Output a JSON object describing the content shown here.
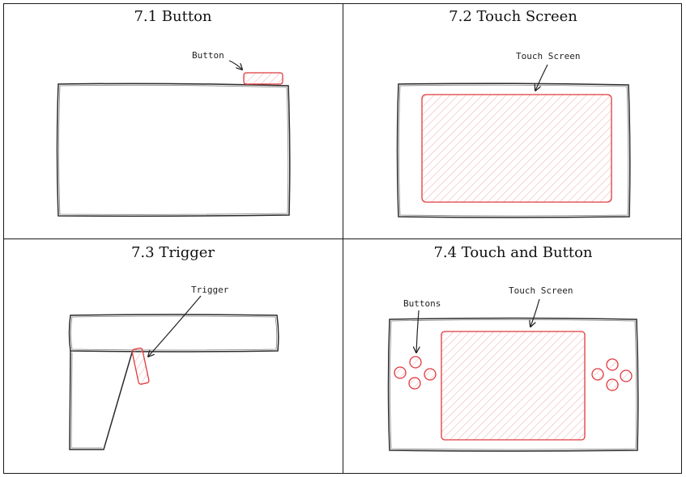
{
  "panels": [
    {
      "title": "7.1 Button",
      "labels": {
        "button": "Button"
      }
    },
    {
      "title": "7.2 Touch Screen",
      "labels": {
        "screen": "Touch Screen"
      }
    },
    {
      "title": "7.3 Trigger",
      "labels": {
        "trigger": "Trigger"
      }
    },
    {
      "title": "7.4 Touch and Button",
      "labels": {
        "buttons": "Buttons",
        "screen": "Touch Screen"
      }
    }
  ],
  "colors": {
    "outline": "#2b2b2b",
    "accent": "#e0393e",
    "accent_fill": "#f7c9cb"
  }
}
